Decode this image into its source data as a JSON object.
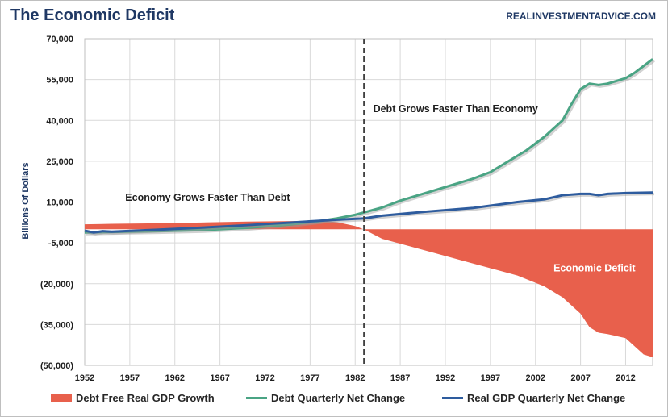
{
  "header": {
    "title": "The Economic Deficit",
    "source": "REALINVESTMENTADVICE.COM"
  },
  "chart_data": {
    "type": "line",
    "ylabel": "Billions  Of Dollars",
    "xlim": [
      1952,
      2015
    ],
    "ylim": [
      -50000,
      70000
    ],
    "x_ticks": [
      "1952",
      "1957",
      "1962",
      "1967",
      "1972",
      "1977",
      "1982",
      "1987",
      "1992",
      "1997",
      "2002",
      "2007",
      "2012"
    ],
    "y_ticks": [
      {
        "value": 70000,
        "label": "70,000"
      },
      {
        "value": 55000,
        "label": "55,000"
      },
      {
        "value": 40000,
        "label": "40,000"
      },
      {
        "value": 25000,
        "label": "25,000"
      },
      {
        "value": 10000,
        "label": "10,000"
      },
      {
        "value": -5000,
        "label": "-5,000"
      },
      {
        "value": -20000,
        "label": "(20,000)"
      },
      {
        "value": -35000,
        "label": "(35,000)"
      },
      {
        "value": -50000,
        "label": "(50,000)"
      }
    ],
    "grid": true,
    "legend_position": "bottom",
    "vertical_marker": {
      "x": 1983,
      "style": "dashed"
    },
    "annotations": [
      {
        "text": "Economy Grows Faster Than Debt",
        "x": 1956.5,
        "y": 10500
      },
      {
        "text": "Debt Grows Faster Than Economy",
        "x": 1984,
        "y": 43000
      },
      {
        "text": "Economic Deficit",
        "x": 2004,
        "y": -15500
      }
    ],
    "series": [
      {
        "name": "Debt Free Real GDP Growth",
        "type": "area",
        "color": "#e8604c",
        "x": [
          1952,
          1955,
          1960,
          1965,
          1970,
          1975,
          1978,
          1980,
          1982,
          1983,
          1985,
          1990,
          1995,
          2000,
          2003,
          2005,
          2007,
          2008,
          2009,
          2010,
          2012,
          2013,
          2014,
          2015
        ],
        "values": [
          1800,
          2000,
          2200,
          2500,
          2800,
          3000,
          3200,
          2600,
          1200,
          -100,
          -3500,
          -8000,
          -12500,
          -17000,
          -21000,
          -25000,
          -31000,
          -36000,
          -38000,
          -38500,
          -40000,
          -43000,
          -46000,
          -47000
        ]
      },
      {
        "name": "Debt Quarterly Net Change",
        "type": "line",
        "color": "#4aa484",
        "x": [
          1952,
          1955,
          1960,
          1965,
          1970,
          1975,
          1978,
          1980,
          1982,
          1983,
          1985,
          1987,
          1990,
          1992,
          1995,
          1997,
          1999,
          2001,
          2003,
          2005,
          2006,
          2007,
          2008,
          2009,
          2010,
          2011,
          2012,
          2013,
          2014,
          2015
        ],
        "values": [
          -1200,
          -1000,
          -700,
          -300,
          500,
          1800,
          3000,
          4000,
          5300,
          6200,
          8000,
          10500,
          13500,
          15500,
          18500,
          21000,
          25000,
          29000,
          34000,
          40000,
          46000,
          51500,
          53500,
          53000,
          53500,
          54500,
          55500,
          57500,
          60000,
          62500
        ]
      },
      {
        "name": "Real GDP Quarterly Net Change",
        "type": "line",
        "color": "#2e5c9e",
        "x": [
          1952,
          1953,
          1954,
          1955,
          1960,
          1965,
          1970,
          1975,
          1980,
          1983,
          1985,
          1990,
          1995,
          2000,
          2003,
          2005,
          2007,
          2008,
          2009,
          2010,
          2012,
          2015
        ],
        "values": [
          -500,
          -1200,
          -700,
          -900,
          -200,
          600,
          1500,
          2500,
          3500,
          4000,
          5000,
          6500,
          7800,
          10000,
          11000,
          12500,
          13000,
          13000,
          12500,
          13000,
          13300,
          13500
        ]
      }
    ]
  }
}
